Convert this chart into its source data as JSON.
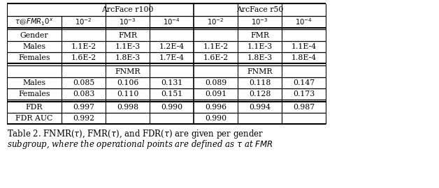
{
  "arcface_r100": "ArcFace r100",
  "arcface_r50": "ArcFace r50",
  "tau_label": "$\\tau$@$FMR_1$$0^x$",
  "exp_cols": [
    "$10^{-2}$",
    "$10^{-3}$",
    "$10^{-4}$",
    "$10^{-2}$",
    "$10^{-3}$",
    "$10^{-4}$"
  ],
  "fmr_label": "FMR",
  "fnmr_label": "FNMR",
  "gender_label": "Gender",
  "fmr_males": [
    "Males",
    "1.1E-2",
    "1.1E-3",
    "1.2E-4",
    "1.1E-2",
    "1.1E-3",
    "1.1E-4"
  ],
  "fmr_females": [
    "Females",
    "1.6E-2",
    "1.8E-3",
    "1.7E-4",
    "1.6E-2",
    "1.8E-3",
    "1.8E-4"
  ],
  "fnmr_males": [
    "Males",
    "0.085",
    "0.106",
    "0.131",
    "0.089",
    "0.118",
    "0.147"
  ],
  "fnmr_females": [
    "Females",
    "0.083",
    "0.110",
    "0.151",
    "0.091",
    "0.128",
    "0.173"
  ],
  "fdr_row": [
    "FDR",
    "0.997",
    "0.998",
    "0.990",
    "0.996",
    "0.994",
    "0.987"
  ],
  "fdr_auc_row": [
    "FDR AUC",
    "0.992",
    "",
    "",
    "0.990",
    "",
    ""
  ],
  "caption_line1": "Table 2. FNMR($\\tau$), FMR($\\tau$), and FDR($\\tau$) are given per gender",
  "caption_line2": "subgroup, where the operational points are defined as $\\tau$ at $FMR$",
  "font_size": 7.8,
  "caption_font_size": 8.5
}
